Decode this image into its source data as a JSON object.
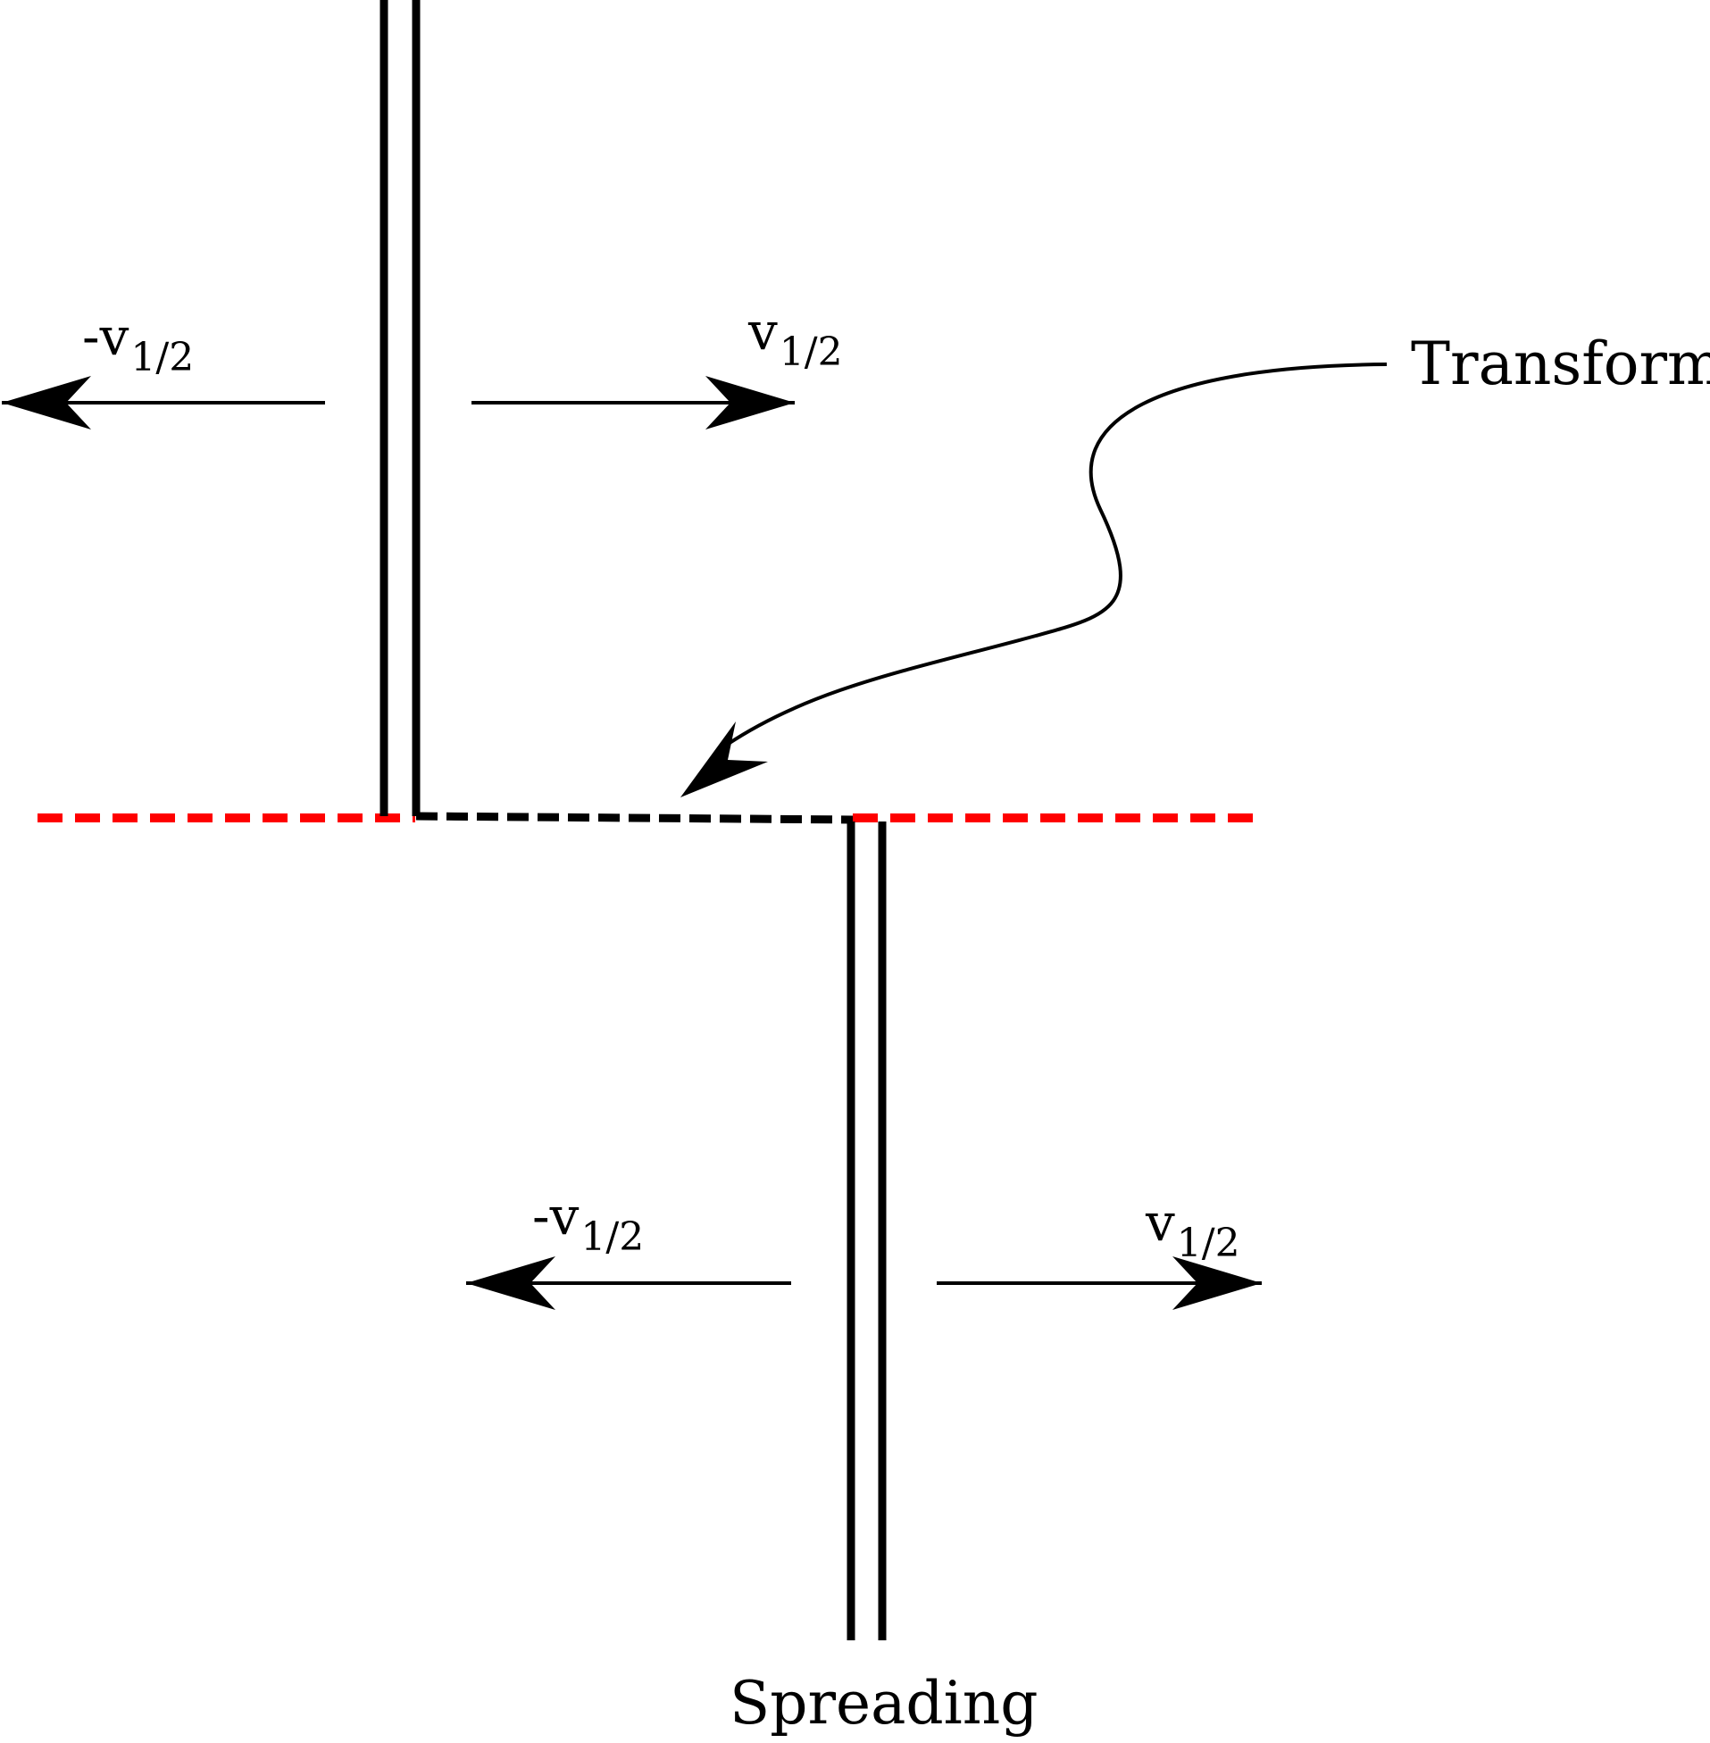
{
  "labels": {
    "transform": "Transform",
    "spreading": "Spreading",
    "neg_velocity_main": "-v",
    "pos_velocity_main": "v",
    "velocity_subscript": "1/2"
  },
  "colors": {
    "ridge": "#000000",
    "transform_fault": "#000000",
    "fracture_zone": "#ff0000",
    "arrows": "#000000",
    "background": "#ffffff"
  }
}
